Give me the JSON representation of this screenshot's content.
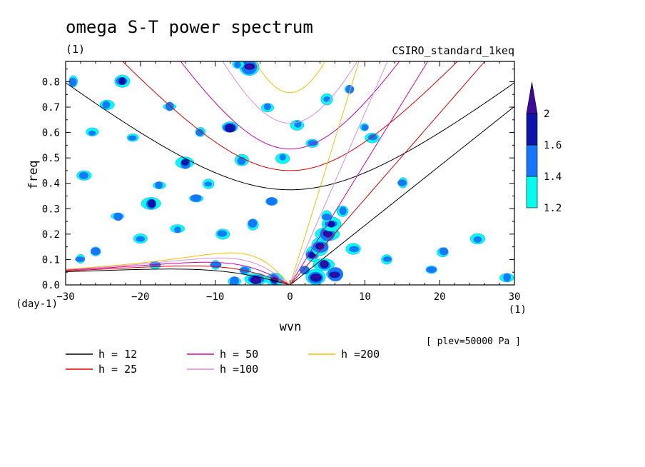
{
  "chart_data": {
    "type": "heatmap",
    "title": "omega S-T power spectrum",
    "subtitle_left": "(1)",
    "subtitle_right": "CSIRO_standard_1keq",
    "xlabel": "wvn",
    "ylabel": "freq",
    "x_unit_label": "(1)",
    "y_unit_label": "(day-1)",
    "annotation": "[ plev=50000 Pa ]",
    "xlim": [
      -30,
      30
    ],
    "ylim": [
      0,
      0.88
    ],
    "x_ticks": [
      -30,
      -20,
      -10,
      0,
      10,
      20,
      30
    ],
    "x_tick_labels": [
      "−30",
      "−20",
      "−10",
      "0",
      "10",
      "20",
      "30"
    ],
    "y_ticks": [
      0.0,
      0.1,
      0.2,
      0.3,
      0.4,
      0.5,
      0.6,
      0.7,
      0.8
    ],
    "y_tick_labels": [
      "0.0",
      "0.1",
      "0.2",
      "0.3",
      "0.4",
      "0.5",
      "0.6",
      "0.7",
      "0.8"
    ],
    "colorbar": {
      "levels": [
        1.2,
        1.4,
        1.6,
        2
      ],
      "level_labels": [
        "1.2",
        "1.4",
        "1.6",
        "2"
      ],
      "colors": [
        "#00ffee",
        "#1478ff",
        "#0a14a8",
        "#3c0a9c"
      ]
    },
    "dispersion_curves": [
      {
        "label": "h = 12",
        "h": 12,
        "color": "#000000"
      },
      {
        "label": "h = 25",
        "h": 25,
        "color": "#dd0000"
      },
      {
        "label": "h = 50",
        "h": 50,
        "color": "#cc00aa"
      },
      {
        "label": "h =100",
        "h": 100,
        "color": "#d890d8"
      },
      {
        "label": "h =200",
        "h": 200,
        "color": "#f0c000"
      }
    ],
    "blobs": [
      {
        "x": 3.5,
        "y": 0.03,
        "level": 3
      },
      {
        "x": 4.5,
        "y": 0.08,
        "level": 3
      },
      {
        "x": 3.0,
        "y": 0.12,
        "level": 2
      },
      {
        "x": 4.0,
        "y": 0.15,
        "level": 3
      },
      {
        "x": 5.0,
        "y": 0.2,
        "level": 3
      },
      {
        "x": 5.5,
        "y": 0.24,
        "level": 2
      },
      {
        "x": 5.0,
        "y": 0.27,
        "level": 1
      },
      {
        "x": 7.0,
        "y": 0.29,
        "level": 1
      },
      {
        "x": 2.0,
        "y": 0.06,
        "level": 1
      },
      {
        "x": 6.0,
        "y": 0.04,
        "level": 3
      },
      {
        "x": -4.5,
        "y": 0.02,
        "level": 3
      },
      {
        "x": -2.0,
        "y": 0.02,
        "level": 2
      },
      {
        "x": -6.0,
        "y": 0.06,
        "level": 1
      },
      {
        "x": -7.5,
        "y": 0.015,
        "level": 1
      },
      {
        "x": -5.5,
        "y": 0.86,
        "level": 3
      },
      {
        "x": -7.0,
        "y": 0.87,
        "level": 1
      },
      {
        "x": -17.5,
        "y": 0.39,
        "level": 1
      },
      {
        "x": -18.5,
        "y": 0.32,
        "level": 2
      },
      {
        "x": -12.5,
        "y": 0.34,
        "level": 1
      },
      {
        "x": -21.0,
        "y": 0.58,
        "level": 1
      },
      {
        "x": -22.5,
        "y": 0.8,
        "level": 2
      },
      {
        "x": -8.0,
        "y": 0.62,
        "level": 2
      },
      {
        "x": -14.0,
        "y": 0.48,
        "level": 2
      },
      {
        "x": -24.5,
        "y": 0.71,
        "level": 1
      },
      {
        "x": -27.5,
        "y": 0.43,
        "level": 1
      },
      {
        "x": -9.0,
        "y": 0.2,
        "level": 1
      },
      {
        "x": -5.0,
        "y": 0.24,
        "level": 1
      },
      {
        "x": -15.0,
        "y": 0.22,
        "level": 1
      },
      {
        "x": -20.0,
        "y": 0.18,
        "level": 1
      },
      {
        "x": -26.0,
        "y": 0.13,
        "level": 1
      },
      {
        "x": -28.0,
        "y": 0.1,
        "level": 1
      },
      {
        "x": -11.0,
        "y": 0.4,
        "level": 1
      },
      {
        "x": -1.0,
        "y": 0.5,
        "level": 1
      },
      {
        "x": 3.0,
        "y": 0.56,
        "level": 1
      },
      {
        "x": 10.0,
        "y": 0.62,
        "level": 1
      },
      {
        "x": 5.0,
        "y": 0.73,
        "level": 1
      },
      {
        "x": 8.0,
        "y": 0.77,
        "level": 1
      },
      {
        "x": 11.0,
        "y": 0.58,
        "level": 1
      },
      {
        "x": -3.0,
        "y": 0.7,
        "level": 1
      },
      {
        "x": 1.0,
        "y": 0.63,
        "level": 1
      },
      {
        "x": 19.0,
        "y": 0.06,
        "level": 1
      },
      {
        "x": 20.5,
        "y": 0.13,
        "level": 1
      },
      {
        "x": 25.0,
        "y": 0.18,
        "level": 1
      },
      {
        "x": 29.0,
        "y": 0.03,
        "level": 1
      },
      {
        "x": 13.0,
        "y": 0.1,
        "level": 1
      },
      {
        "x": -29.0,
        "y": 0.8,
        "level": 1
      },
      {
        "x": -26.5,
        "y": 0.6,
        "level": 1
      },
      {
        "x": -16.0,
        "y": 0.7,
        "level": 1
      },
      {
        "x": -12.0,
        "y": 0.6,
        "level": 1
      },
      {
        "x": -10.0,
        "y": 0.08,
        "level": 1
      },
      {
        "x": -23.0,
        "y": 0.27,
        "level": 1
      },
      {
        "x": 8.5,
        "y": 0.14,
        "level": 1
      },
      {
        "x": -18.0,
        "y": 0.08,
        "level": 1
      },
      {
        "x": -6.5,
        "y": 0.49,
        "level": 1
      },
      {
        "x": -2.5,
        "y": 0.33,
        "level": 1
      },
      {
        "x": 15.0,
        "y": 0.4,
        "level": 1
      }
    ]
  },
  "legend": {
    "items": [
      "h = 12",
      "h = 25",
      "h = 50",
      "h =100",
      "h =200"
    ]
  }
}
